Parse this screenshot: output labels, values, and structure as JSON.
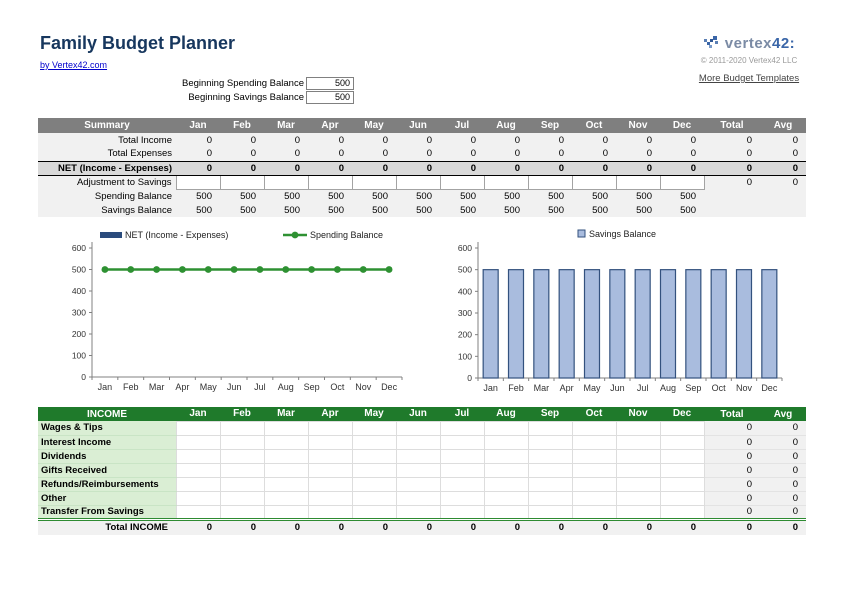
{
  "header": {
    "title": "Family Budget Planner",
    "byline": "by Vertex42.com",
    "logo_text_main": "vertex",
    "logo_text_num": "42:",
    "copyright": "© 2011-2020 Vertex42 LLC",
    "more_link": "More Budget Templates"
  },
  "settings": {
    "spending_label": "Beginning Spending Balance",
    "spending_value": "500",
    "savings_label": "Beginning Savings Balance",
    "savings_value": "500"
  },
  "months": [
    "Jan",
    "Feb",
    "Mar",
    "Apr",
    "May",
    "Jun",
    "Jul",
    "Aug",
    "Sep",
    "Oct",
    "Nov",
    "Dec"
  ],
  "summary_table": {
    "title": "Summary",
    "total_header": "Total",
    "avg_header": "Avg",
    "rows": [
      {
        "label": "Total Income",
        "kind": "plain",
        "values": [
          "0",
          "0",
          "0",
          "0",
          "0",
          "0",
          "0",
          "0",
          "0",
          "0",
          "0",
          "0"
        ],
        "total": "0",
        "avg": "0"
      },
      {
        "label": "Total Expenses",
        "kind": "plain",
        "values": [
          "0",
          "0",
          "0",
          "0",
          "0",
          "0",
          "0",
          "0",
          "0",
          "0",
          "0",
          "0"
        ],
        "total": "0",
        "avg": "0"
      },
      {
        "label": "NET (Income - Expenses)",
        "kind": "net",
        "values": [
          "0",
          "0",
          "0",
          "0",
          "0",
          "0",
          "0",
          "0",
          "0",
          "0",
          "0",
          "0"
        ],
        "total": "0",
        "avg": "0"
      },
      {
        "label": "Adjustment to Savings",
        "kind": "input",
        "values": [
          "",
          "",
          "",
          "",
          "",
          "",
          "",
          "",
          "",
          "",
          "",
          ""
        ],
        "total": "0",
        "avg": "0"
      },
      {
        "label": "Spending Balance",
        "kind": "plain",
        "values": [
          "500",
          "500",
          "500",
          "500",
          "500",
          "500",
          "500",
          "500",
          "500",
          "500",
          "500",
          "500"
        ],
        "total": "",
        "avg": ""
      },
      {
        "label": "Savings Balance",
        "kind": "plain",
        "values": [
          "500",
          "500",
          "500",
          "500",
          "500",
          "500",
          "500",
          "500",
          "500",
          "500",
          "500",
          "500"
        ],
        "total": "",
        "avg": ""
      }
    ]
  },
  "income_table": {
    "title": "INCOME",
    "total_header": "Total",
    "avg_header": "Avg",
    "rows": [
      {
        "label": "Wages & Tips",
        "values": [
          "",
          "",
          "",
          "",
          "",
          "",
          "",
          "",
          "",
          "",
          "",
          ""
        ],
        "total": "0",
        "avg": "0"
      },
      {
        "label": "Interest Income",
        "values": [
          "",
          "",
          "",
          "",
          "",
          "",
          "",
          "",
          "",
          "",
          "",
          ""
        ],
        "total": "0",
        "avg": "0"
      },
      {
        "label": "Dividends",
        "values": [
          "",
          "",
          "",
          "",
          "",
          "",
          "",
          "",
          "",
          "",
          "",
          ""
        ],
        "total": "0",
        "avg": "0"
      },
      {
        "label": "Gifts Received",
        "values": [
          "",
          "",
          "",
          "",
          "",
          "",
          "",
          "",
          "",
          "",
          "",
          ""
        ],
        "total": "0",
        "avg": "0"
      },
      {
        "label": "Refunds/Reimbursements",
        "values": [
          "",
          "",
          "",
          "",
          "",
          "",
          "",
          "",
          "",
          "",
          "",
          ""
        ],
        "total": "0",
        "avg": "0"
      },
      {
        "label": "Other",
        "values": [
          "",
          "",
          "",
          "",
          "",
          "",
          "",
          "",
          "",
          "",
          "",
          ""
        ],
        "total": "0",
        "avg": "0"
      },
      {
        "label": "Transfer From Savings",
        "values": [
          "",
          "",
          "",
          "",
          "",
          "",
          "",
          "",
          "",
          "",
          "",
          ""
        ],
        "total": "0",
        "avg": "0"
      }
    ],
    "total_row": {
      "label": "Total INCOME",
      "values": [
        "0",
        "0",
        "0",
        "0",
        "0",
        "0",
        "0",
        "0",
        "0",
        "0",
        "0",
        "0"
      ],
      "total": "0",
      "avg": "0"
    }
  },
  "chart_data": [
    {
      "type": "line",
      "title": "",
      "categories": [
        "Jan",
        "Feb",
        "Mar",
        "Apr",
        "May",
        "Jun",
        "Jul",
        "Aug",
        "Sep",
        "Oct",
        "Nov",
        "Dec"
      ],
      "series": [
        {
          "name": "NET (Income - Expenses)",
          "type": "bar",
          "color": "#2A4B7C",
          "values": [
            0,
            0,
            0,
            0,
            0,
            0,
            0,
            0,
            0,
            0,
            0,
            0
          ]
        },
        {
          "name": "Spending Balance",
          "type": "line",
          "color": "#2E9132",
          "values": [
            500,
            500,
            500,
            500,
            500,
            500,
            500,
            500,
            500,
            500,
            500,
            500
          ]
        }
      ],
      "ylim": [
        0,
        600
      ],
      "ytick_step": 100,
      "legend_position": "top",
      "grid": false
    },
    {
      "type": "bar",
      "title": "",
      "categories": [
        "Jan",
        "Feb",
        "Mar",
        "Apr",
        "May",
        "Jun",
        "Jul",
        "Aug",
        "Sep",
        "Oct",
        "Nov",
        "Dec"
      ],
      "series": [
        {
          "name": "Savings Balance",
          "type": "bar",
          "color": "#A9BCDE",
          "border": "#33517E",
          "values": [
            500,
            500,
            500,
            500,
            500,
            500,
            500,
            500,
            500,
            500,
            500,
            500
          ]
        }
      ],
      "ylim": [
        0,
        600
      ],
      "ytick_step": 100,
      "legend_position": "top",
      "grid": false
    }
  ],
  "colors": {
    "title_blue": "#17375E",
    "summary_header_gray": "#7F7F7F",
    "net_row_gray": "#D9D9D9",
    "income_header_green": "#1F7A2B",
    "income_label_green": "#DAEED4",
    "income_double_border_green": "#2E8B32",
    "net_series_navy": "#2A4B7C",
    "spending_line_green": "#2E9132",
    "savings_bar_fill": "#A9BCDE",
    "savings_bar_border": "#33517E"
  }
}
